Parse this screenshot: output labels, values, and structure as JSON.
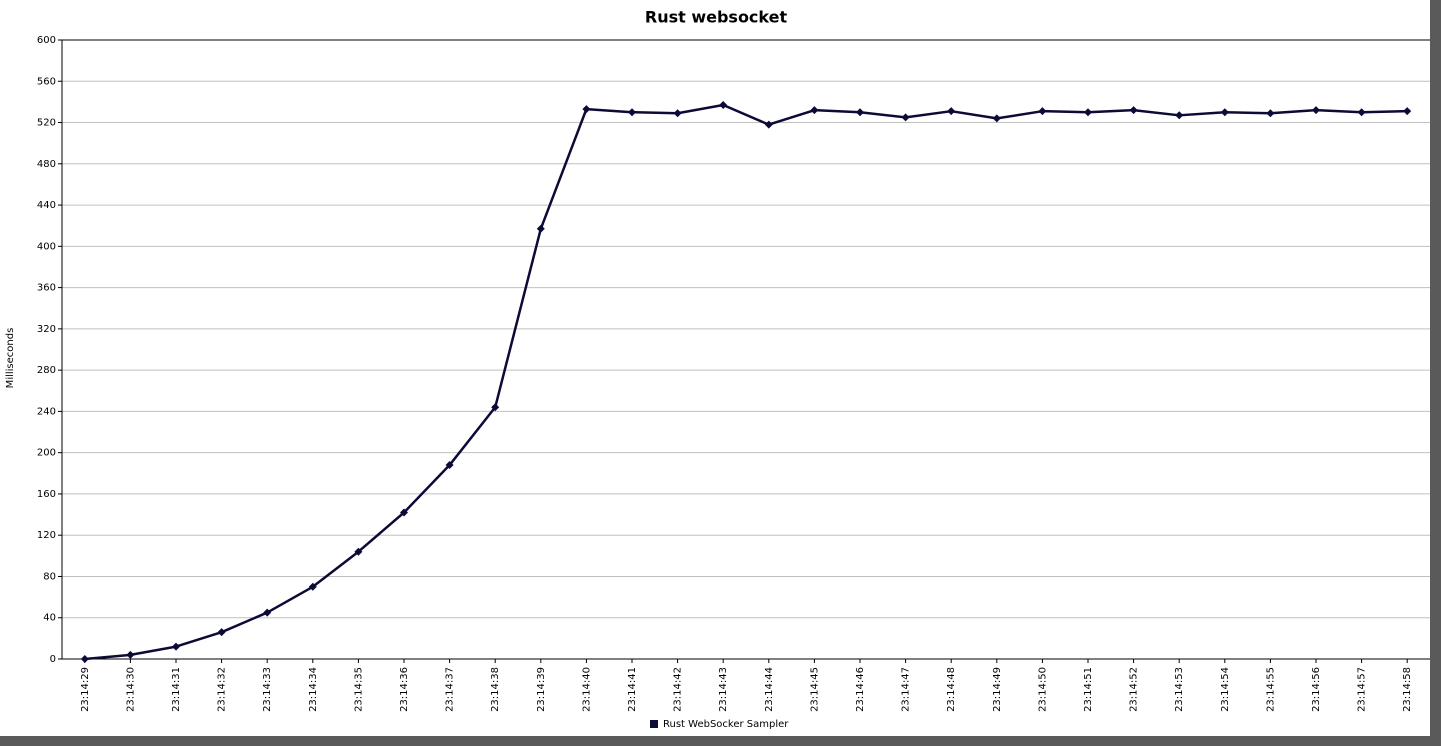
{
  "chart_data": {
    "type": "line",
    "title": "Rust websocket",
    "y_label": "Milliseconds",
    "categories": [
      "23:14:29",
      "23:14:30",
      "23:14:31",
      "23:14:32",
      "23:14:33",
      "23:14:34",
      "23:14:35",
      "23:14:36",
      "23:14:37",
      "23:14:38",
      "23:14:39",
      "23:14:40",
      "23:14:41",
      "23:14:42",
      "23:14:43",
      "23:14:44",
      "23:14:45",
      "23:14:46",
      "23:14:47",
      "23:14:48",
      "23:14:49",
      "23:14:50",
      "23:14:51",
      "23:14:52",
      "23:14:53",
      "23:14:54",
      "23:14:55",
      "23:14:56",
      "23:14:57",
      "23:14:58"
    ],
    "series": [
      {
        "name": "Rust WebSocker Sampler",
        "color": "#0c0a36",
        "values": [
          0,
          4,
          12,
          26,
          45,
          70,
          104,
          142,
          188,
          244,
          417,
          533,
          530,
          529,
          537,
          518,
          532,
          530,
          525,
          531,
          524,
          531,
          530,
          532,
          527,
          530,
          529,
          532,
          530,
          531
        ]
      }
    ],
    "ylim": [
      0,
      600
    ],
    "yticks": [
      0,
      40,
      80,
      120,
      160,
      200,
      240,
      280,
      320,
      360,
      400,
      440,
      480,
      520,
      560,
      600
    ],
    "grid": true,
    "legend": "bottom"
  }
}
